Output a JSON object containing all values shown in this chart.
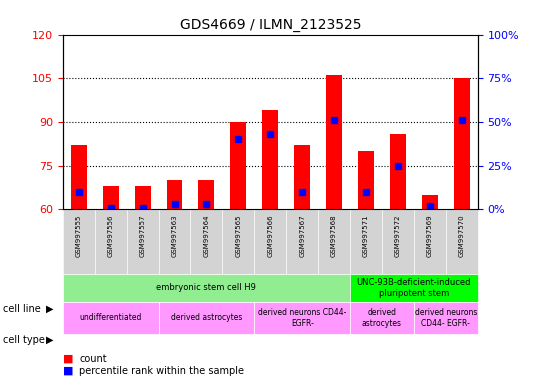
{
  "title": "GDS4669 / ILMN_2123525",
  "samples": [
    "GSM997555",
    "GSM997556",
    "GSM997557",
    "GSM997563",
    "GSM997564",
    "GSM997565",
    "GSM997566",
    "GSM997567",
    "GSM997568",
    "GSM997571",
    "GSM997572",
    "GSM997569",
    "GSM997570"
  ],
  "count_values": [
    82,
    68,
    68,
    70,
    70,
    90,
    94,
    82,
    106,
    80,
    86,
    65,
    105
  ],
  "percentile_values": [
    10,
    1,
    1,
    3,
    3,
    40,
    43,
    10,
    51,
    10,
    25,
    2,
    51
  ],
  "ylim_left": [
    60,
    120
  ],
  "ylim_right": [
    0,
    100
  ],
  "yticks_left": [
    60,
    75,
    90,
    105,
    120
  ],
  "yticks_right": [
    0,
    25,
    50,
    75,
    100
  ],
  "bar_color": "#ff0000",
  "percentile_color": "#0000ff",
  "bar_width": 0.5,
  "cell_line_groups": [
    {
      "label": "embryonic stem cell H9",
      "start": 0,
      "end": 9,
      "color": "#90ee90"
    },
    {
      "label": "UNC-93B-deficient-induced\npluripotent stem",
      "start": 9,
      "end": 13,
      "color": "#00ff00"
    }
  ],
  "cell_type_groups": [
    {
      "label": "undifferentiated",
      "start": 0,
      "end": 3,
      "color": "#ff99ff"
    },
    {
      "label": "derived astrocytes",
      "start": 3,
      "end": 6,
      "color": "#ff99ff"
    },
    {
      "label": "derived neurons CD44-\nEGFR-",
      "start": 6,
      "end": 9,
      "color": "#ff99ff"
    },
    {
      "label": "derived\nastrocytes",
      "start": 9,
      "end": 11,
      "color": "#ff99ff"
    },
    {
      "label": "derived neurons\nCD44- EGFR-",
      "start": 11,
      "end": 13,
      "color": "#ff99ff"
    }
  ],
  "legend_count_color": "#ff0000",
  "legend_percentile_color": "#0000ff",
  "background_color": "#ffffff"
}
